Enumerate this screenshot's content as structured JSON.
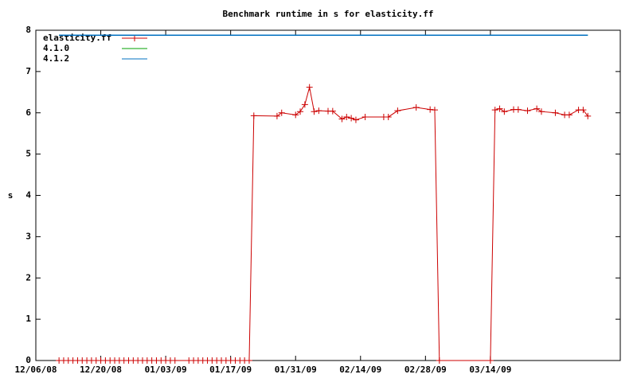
{
  "chart_data": {
    "type": "line",
    "title": "Benchmark runtime in s for elasticity.ff",
    "y_label": "s",
    "xlim": [
      "12/06/08",
      "04/11/09"
    ],
    "xticks": [
      "12/06/08",
      "12/20/08",
      "01/03/09",
      "01/17/09",
      "01/31/09",
      "02/14/09",
      "02/28/09",
      "03/14/09"
    ],
    "ylim": [
      0,
      8
    ],
    "yticks": [
      0,
      1,
      2,
      3,
      4,
      5,
      6,
      7,
      8
    ],
    "legend": "top-left",
    "series": [
      {
        "name": "elasticity.ff",
        "color": "#cc0000",
        "marker": "plus",
        "x": [
          "12/11/08",
          "12/12/08",
          "12/13/08",
          "12/14/08",
          "12/15/08",
          "12/16/08",
          "12/17/08",
          "12/18/08",
          "12/19/08",
          "12/20/08",
          "12/21/08",
          "12/22/08",
          "12/23/08",
          "12/24/08",
          "12/25/08",
          "12/26/08",
          "12/27/08",
          "12/28/08",
          "12/29/08",
          "12/30/08",
          "12/31/08",
          "01/01/09",
          "01/02/09",
          "01/03/09",
          "01/04/09",
          "01/05/09",
          "01/08/09",
          "01/09/09",
          "01/10/09",
          "01/11/09",
          "01/12/09",
          "01/13/09",
          "01/14/09",
          "01/15/09",
          "01/16/09",
          "01/17/09",
          "01/18/09",
          "01/19/09",
          "01/20/09",
          "01/21/09",
          "01/22/09",
          "01/27/09",
          "01/28/09",
          "01/31/09",
          "02/01/09",
          "02/02/09",
          "02/03/09",
          "02/04/09",
          "02/05/09",
          "02/07/09",
          "02/08/09",
          "02/10/09",
          "02/11/09",
          "02/12/09",
          "02/13/09",
          "02/15/09",
          "02/19/09",
          "02/20/09",
          "02/22/09",
          "02/26/09",
          "03/01/09",
          "03/02/09",
          "03/03/09",
          "03/14/09",
          "03/15/09",
          "03/16/09",
          "03/17/09",
          "03/19/09",
          "03/20/09",
          "03/22/09",
          "03/24/09",
          "03/25/09",
          "03/28/09",
          "03/30/09",
          "03/31/09",
          "04/02/09",
          "04/03/09",
          "04/04/09"
        ],
        "values": [
          0,
          0,
          0,
          0,
          0,
          0,
          0,
          0,
          0,
          0,
          0,
          0,
          0,
          0,
          0,
          0,
          0,
          0,
          0,
          0,
          0,
          0,
          0,
          0,
          0,
          0,
          0,
          0,
          0,
          0,
          0,
          0,
          0,
          0,
          0,
          0,
          0,
          0,
          0,
          0,
          5.93,
          5.92,
          6.0,
          5.95,
          6.03,
          6.2,
          6.62,
          6.03,
          6.05,
          6.04,
          6.04,
          5.85,
          5.9,
          5.87,
          5.83,
          5.9,
          5.9,
          5.9,
          6.05,
          6.13,
          6.08,
          6.07,
          0,
          0,
          6.07,
          6.1,
          6.03,
          6.08,
          6.08,
          6.05,
          6.1,
          6.03,
          6.0,
          5.95,
          5.95,
          6.07,
          6.07,
          5.92
        ]
      },
      {
        "name": "4.1.0",
        "color": "#00a000",
        "marker": "none",
        "x": [
          "12/11/08",
          "04/04/09"
        ],
        "values": [
          7.88,
          7.88
        ]
      },
      {
        "name": "4.1.2",
        "color": "#0070c0",
        "marker": "none",
        "x": [
          "12/11/08",
          "04/04/09"
        ],
        "values": [
          7.88,
          7.88
        ]
      }
    ]
  }
}
